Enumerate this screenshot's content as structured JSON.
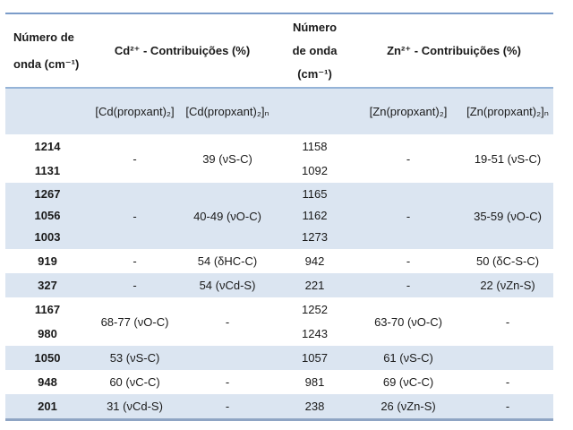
{
  "colors": {
    "row_shade": "#dbe5f1",
    "border_outer_top": "#7b9cc9",
    "border_outer_bottom": "#8fa5c4",
    "border_header_underline": "#95b3d7"
  },
  "table": {
    "header": {
      "col1_line1": "Número de",
      "col1_line2": "onda (cm⁻¹)",
      "cd_group": "Cd²⁺ - Contribuições (%)",
      "col4_line1": "Número",
      "col4_line2": "de onda",
      "col4_line3": "(cm⁻¹)",
      "zn_group": "Zn²⁺ - Contribuições (%)"
    },
    "subheader": {
      "cd_dimer": "[Cd(propxant)₂]",
      "cd_polymer": "[Cd(propxant)₂]ₙ",
      "zn_dimer": "[Zn(propxant)₂]",
      "zn_polymer": "[Zn(propxant)₂]ₙ"
    },
    "rows": [
      {
        "cd_wn": [
          "1214",
          "1131"
        ],
        "cd_dimer": "-",
        "cd_polymer": "39 (νS-C)",
        "zn_wn": [
          "1158",
          "1092"
        ],
        "zn_dimer": "-",
        "zn_polymer": "19-51 (νS-C)"
      },
      {
        "cd_wn": [
          "1267",
          "1056",
          "1003"
        ],
        "cd_dimer": "-",
        "cd_polymer": "40-49 (νO-C)",
        "zn_wn": [
          "1165",
          "1162",
          "1273"
        ],
        "zn_dimer": "-",
        "zn_polymer": "35-59 (νO-C)"
      },
      {
        "cd_wn": [
          "919"
        ],
        "cd_dimer": "-",
        "cd_polymer": "54 (δHC-C)",
        "zn_wn": [
          "942"
        ],
        "zn_dimer": "-",
        "zn_polymer": "50 (δC-S-C)"
      },
      {
        "cd_wn": [
          "327"
        ],
        "cd_dimer": "-",
        "cd_polymer": "54 (νCd-S)",
        "zn_wn": [
          "221"
        ],
        "zn_dimer": "-",
        "zn_polymer": "22 (νZn-S)"
      },
      {
        "cd_wn": [
          "1167",
          "980"
        ],
        "cd_dimer": "68-77 (νO-C)",
        "cd_polymer": "-",
        "zn_wn": [
          "1252",
          "1243"
        ],
        "zn_dimer": "63-70 (νO-C)",
        "zn_polymer": "-"
      },
      {
        "cd_wn": [
          "1050"
        ],
        "cd_dimer": "53 (νS-C)",
        "cd_polymer": "",
        "zn_wn": [
          "1057"
        ],
        "zn_dimer": "61 (νS-C)",
        "zn_polymer": ""
      },
      {
        "cd_wn": [
          "948"
        ],
        "cd_dimer": "60 (νC-C)",
        "cd_polymer": "-",
        "zn_wn": [
          "981"
        ],
        "zn_dimer": "69 (νC-C)",
        "zn_polymer": "-"
      },
      {
        "cd_wn": [
          "201"
        ],
        "cd_dimer": "31 (νCd-S)",
        "cd_polymer": "-",
        "zn_wn": [
          "238"
        ],
        "zn_dimer": "26 (νZn-S)",
        "zn_polymer": "-"
      }
    ]
  }
}
